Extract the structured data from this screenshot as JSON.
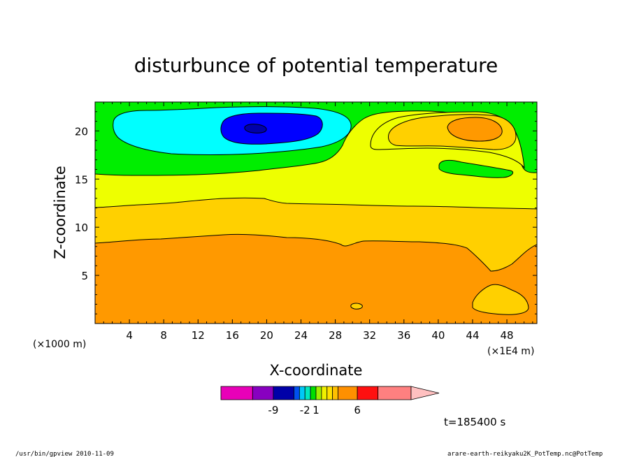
{
  "chart_data": {
    "type": "heatmap",
    "title": "disturbunce of potential temperature",
    "xlabel": "X-coordinate",
    "ylabel": "Z-coordinate",
    "x_unit_left": "(×1000 m)",
    "x_unit_right": "(×1E4 m)",
    "x_ticks": [
      "4",
      "8",
      "12",
      "16",
      "20",
      "24",
      "28",
      "32",
      "36",
      "40",
      "44",
      "48"
    ],
    "y_ticks": [
      "5",
      "10",
      "15",
      "20"
    ],
    "xlim": [
      0,
      51.5
    ],
    "ylim": [
      0,
      23
    ],
    "time_label": "t=185400  s",
    "colorbar": {
      "labels": [
        {
          "text": "-9",
          "level": -9
        },
        {
          "text": "-2",
          "level": -2
        },
        {
          "text": "1",
          "level": 1
        },
        {
          "text": "6",
          "level": 6
        }
      ],
      "levels": [
        -12,
        -10,
        -8,
        -6,
        -4,
        -3,
        -2,
        -1,
        0,
        1,
        2,
        3,
        4,
        6,
        8,
        10
      ],
      "colors": [
        "#e800b8",
        "#8800c0",
        "#0000a8",
        "#0050f0",
        "#00c8f8",
        "#00e8c0",
        "#00e000",
        "#a0f000",
        "#f0f000",
        "#ffe000",
        "#ffc000",
        "#ff9000",
        "#ff6000",
        "#ff1010",
        "#ff8080",
        "#ffc0c0"
      ]
    },
    "regions": [
      {
        "name": "upper-negative",
        "level_range": [
          -4,
          -2
        ],
        "color": "#00ee00"
      },
      {
        "name": "cyan-core",
        "level_range": [
          -6,
          -4
        ],
        "color": "#00ffff"
      },
      {
        "name": "blue-core",
        "level_range": [
          -10,
          -6
        ],
        "color": "#0000ff"
      },
      {
        "name": "darkblue-core",
        "level_range": [
          -12,
          -10
        ],
        "color": "#0000aa"
      },
      {
        "name": "middle-band",
        "level_range": [
          -2,
          1
        ],
        "color": "#eeff00"
      },
      {
        "name": "warm-band",
        "level_range": [
          1,
          3
        ],
        "color": "#ffd000"
      },
      {
        "name": "lower-band",
        "level_range": [
          3,
          6
        ],
        "color": "#ff9900"
      }
    ]
  },
  "footer": {
    "left": "/usr/bin/gpview   2010-11-09",
    "right": "arare-earth-reikyaku2K_PotTemp.nc@PotTemp"
  }
}
